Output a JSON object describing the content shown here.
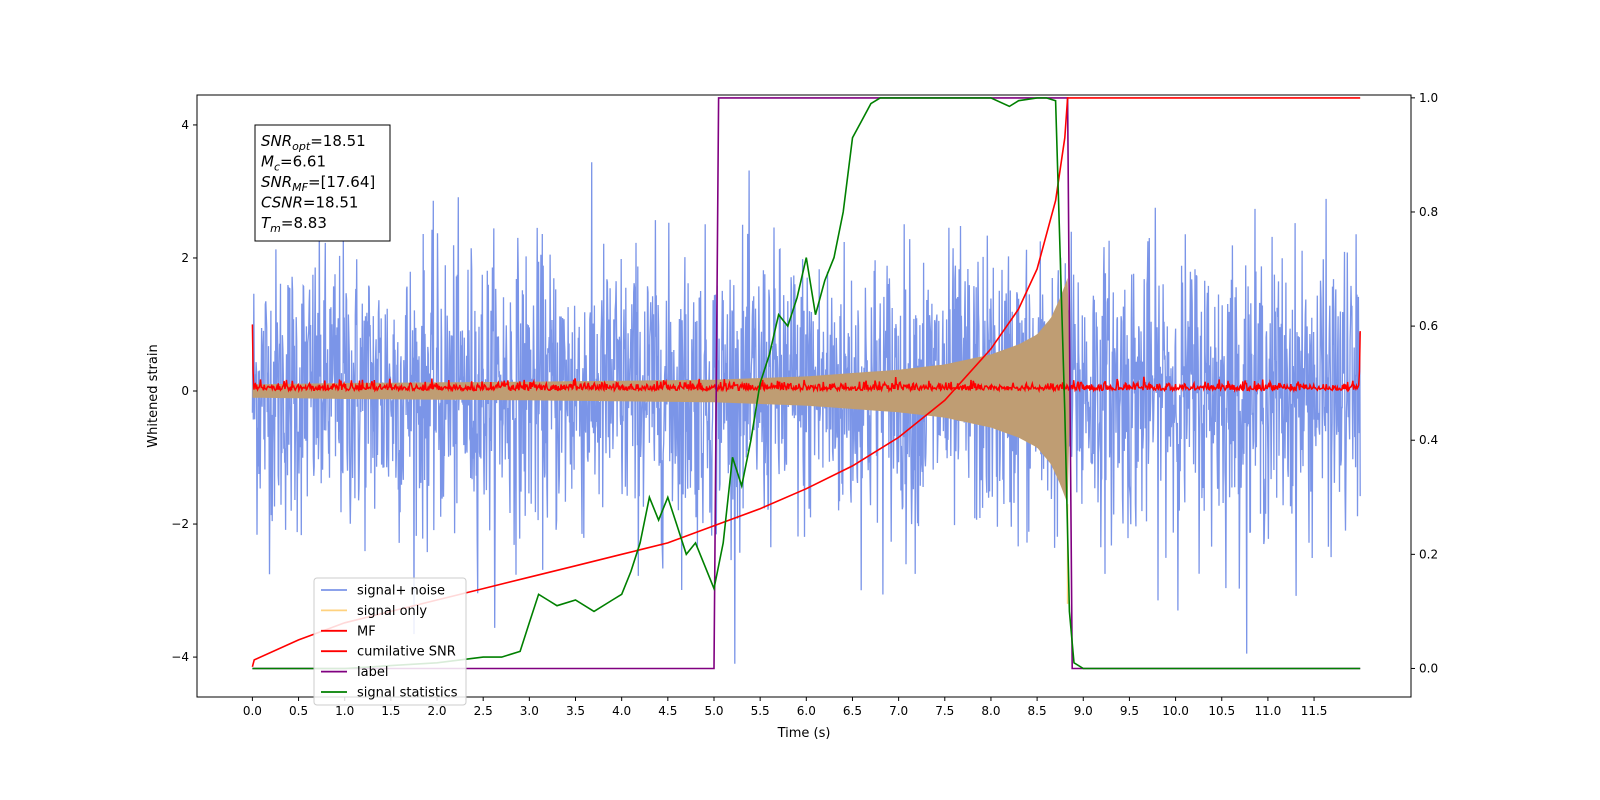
{
  "chart_data": {
    "type": "line",
    "xlabel": "Time (s)",
    "ylabel_left": "Whitened strain",
    "ylabel_right": "",
    "xlim": [
      -0.6,
      12.55
    ],
    "ylim_left": [
      -4.6,
      4.45
    ],
    "ylim_right": [
      -0.05,
      1.005
    ],
    "x_ticks": [
      0.0,
      0.5,
      1.0,
      1.5,
      2.0,
      2.5,
      3.0,
      3.5,
      4.0,
      4.5,
      5.0,
      5.5,
      6.0,
      6.5,
      7.0,
      7.5,
      8.0,
      8.5,
      9.0,
      9.5,
      10.0,
      10.5,
      11.0,
      11.5
    ],
    "x_tick_labels": [
      "0.0",
      "0.5",
      "1.0",
      "1.5",
      "2.0",
      "2.5",
      "3.0",
      "3.5",
      "4.0",
      "4.5",
      "5.0",
      "5.5",
      "6.0",
      "6.5",
      "7.0",
      "7.5",
      "8.0",
      "8.5",
      "9.0",
      "9.5",
      "10.0",
      "10.5",
      "11.0",
      "11.5"
    ],
    "y_left_ticks": [
      -4,
      -2,
      0,
      2,
      4
    ],
    "y_left_tick_labels": [
      "−4",
      "−2",
      "0",
      "2",
      "4"
    ],
    "y_right_ticks": [
      0.0,
      0.2,
      0.4,
      0.6,
      0.8,
      1.0
    ],
    "y_right_tick_labels": [
      "0.0",
      "0.2",
      "0.4",
      "0.6",
      "0.8",
      "1.0"
    ],
    "colors": {
      "signal_noise": "#7b95e8",
      "signal_only": "#ffd27f",
      "overlap": "#bf9d73",
      "mf": "#ff0000",
      "csnr": "#ff0000",
      "label": "#800080",
      "statistics": "#008000"
    },
    "series": [
      {
        "name": "signal+ noise",
        "axis": "left",
        "kind": "noise",
        "t_range": [
          0.0,
          12.0
        ],
        "envelope": 3.6,
        "min": -4.1,
        "max": 4.0
      },
      {
        "name": "signal only",
        "axis": "left",
        "kind": "chirp",
        "amplitude": [
          [
            0.0,
            0.1
          ],
          [
            1.0,
            0.12
          ],
          [
            3.0,
            0.14
          ],
          [
            5.0,
            0.17
          ],
          [
            6.0,
            0.22
          ],
          [
            7.0,
            0.32
          ],
          [
            7.5,
            0.4
          ],
          [
            8.0,
            0.55
          ],
          [
            8.3,
            0.7
          ],
          [
            8.5,
            0.85
          ],
          [
            8.65,
            1.1
          ],
          [
            8.75,
            1.4
          ],
          [
            8.83,
            1.7
          ]
        ]
      },
      {
        "name": "MF",
        "axis": "left",
        "kind": "noise_small",
        "t_range": [
          0.0,
          12.0
        ],
        "envelope": 0.12
      },
      {
        "name": "cumilative SNR",
        "axis": "right",
        "x": [
          0.0,
          0.02,
          0.5,
          1.0,
          1.5,
          2.0,
          2.5,
          3.0,
          3.5,
          4.0,
          4.5,
          5.0,
          5.5,
          6.0,
          6.5,
          7.0,
          7.5,
          8.0,
          8.3,
          8.5,
          8.7,
          8.8,
          8.83,
          12.0
        ],
        "y": [
          0.003,
          0.015,
          0.05,
          0.08,
          0.1,
          0.12,
          0.14,
          0.16,
          0.18,
          0.2,
          0.22,
          0.25,
          0.28,
          0.315,
          0.355,
          0.405,
          0.47,
          0.56,
          0.63,
          0.7,
          0.82,
          0.93,
          1.0,
          1.0
        ]
      },
      {
        "name": "label",
        "axis": "right",
        "x": [
          0.0,
          5.0,
          5.05,
          8.83,
          8.88,
          12.0
        ],
        "y": [
          0.0,
          0.0,
          1.0,
          1.0,
          0.0,
          0.0
        ]
      },
      {
        "name": "signal statistics",
        "axis": "right",
        "x": [
          0.0,
          0.5,
          1.0,
          1.5,
          2.0,
          2.5,
          2.7,
          2.9,
          3.0,
          3.1,
          3.2,
          3.3,
          3.5,
          3.7,
          3.9,
          4.0,
          4.1,
          4.2,
          4.3,
          4.4,
          4.5,
          4.6,
          4.7,
          4.8,
          4.9,
          5.0,
          5.1,
          5.2,
          5.3,
          5.4,
          5.5,
          5.6,
          5.7,
          5.8,
          5.9,
          6.0,
          6.1,
          6.2,
          6.3,
          6.4,
          6.5,
          6.6,
          6.7,
          6.8,
          7.0,
          7.5,
          8.0,
          8.2,
          8.3,
          8.5,
          8.6,
          8.7,
          8.8,
          8.85,
          8.9,
          9.0,
          12.0
        ],
        "y": [
          0.0,
          0.0,
          0.0,
          0.005,
          0.01,
          0.02,
          0.02,
          0.03,
          0.08,
          0.13,
          0.12,
          0.11,
          0.12,
          0.1,
          0.12,
          0.13,
          0.17,
          0.22,
          0.3,
          0.26,
          0.3,
          0.25,
          0.2,
          0.22,
          0.18,
          0.14,
          0.22,
          0.37,
          0.32,
          0.4,
          0.5,
          0.55,
          0.62,
          0.6,
          0.65,
          0.72,
          0.62,
          0.68,
          0.72,
          0.8,
          0.93,
          0.96,
          0.99,
          1.0,
          1.0,
          1.0,
          1.0,
          0.985,
          0.995,
          1.0,
          1.0,
          0.995,
          0.45,
          0.1,
          0.01,
          0.0,
          0.0
        ]
      }
    ],
    "legend": {
      "placement": "lower-left",
      "entries": [
        {
          "label": "signal+ noise",
          "color": "#7b95e8"
        },
        {
          "label": "signal only",
          "color": "#ffd27f"
        },
        {
          "label": "MF",
          "color": "#ff0000"
        },
        {
          "label": "cumilative SNR",
          "color": "#ff0000"
        },
        {
          "label": "label",
          "color": "#800080"
        },
        {
          "label": "signal statistics",
          "color": "#008000"
        }
      ]
    },
    "annotation": {
      "placement": "top-left",
      "lines": [
        {
          "sym": "SNR",
          "sub": "opt",
          "text": "=18.51"
        },
        {
          "sym": "M",
          "sub": "c",
          "text": "=6.61"
        },
        {
          "sym": "SNR",
          "sub": "MF",
          "text": "=[17.64]"
        },
        {
          "sym": "CSNR",
          "sub": "",
          "text": "=18.51"
        },
        {
          "sym": "T",
          "sub": "m",
          "text": "=8.83"
        }
      ]
    }
  }
}
